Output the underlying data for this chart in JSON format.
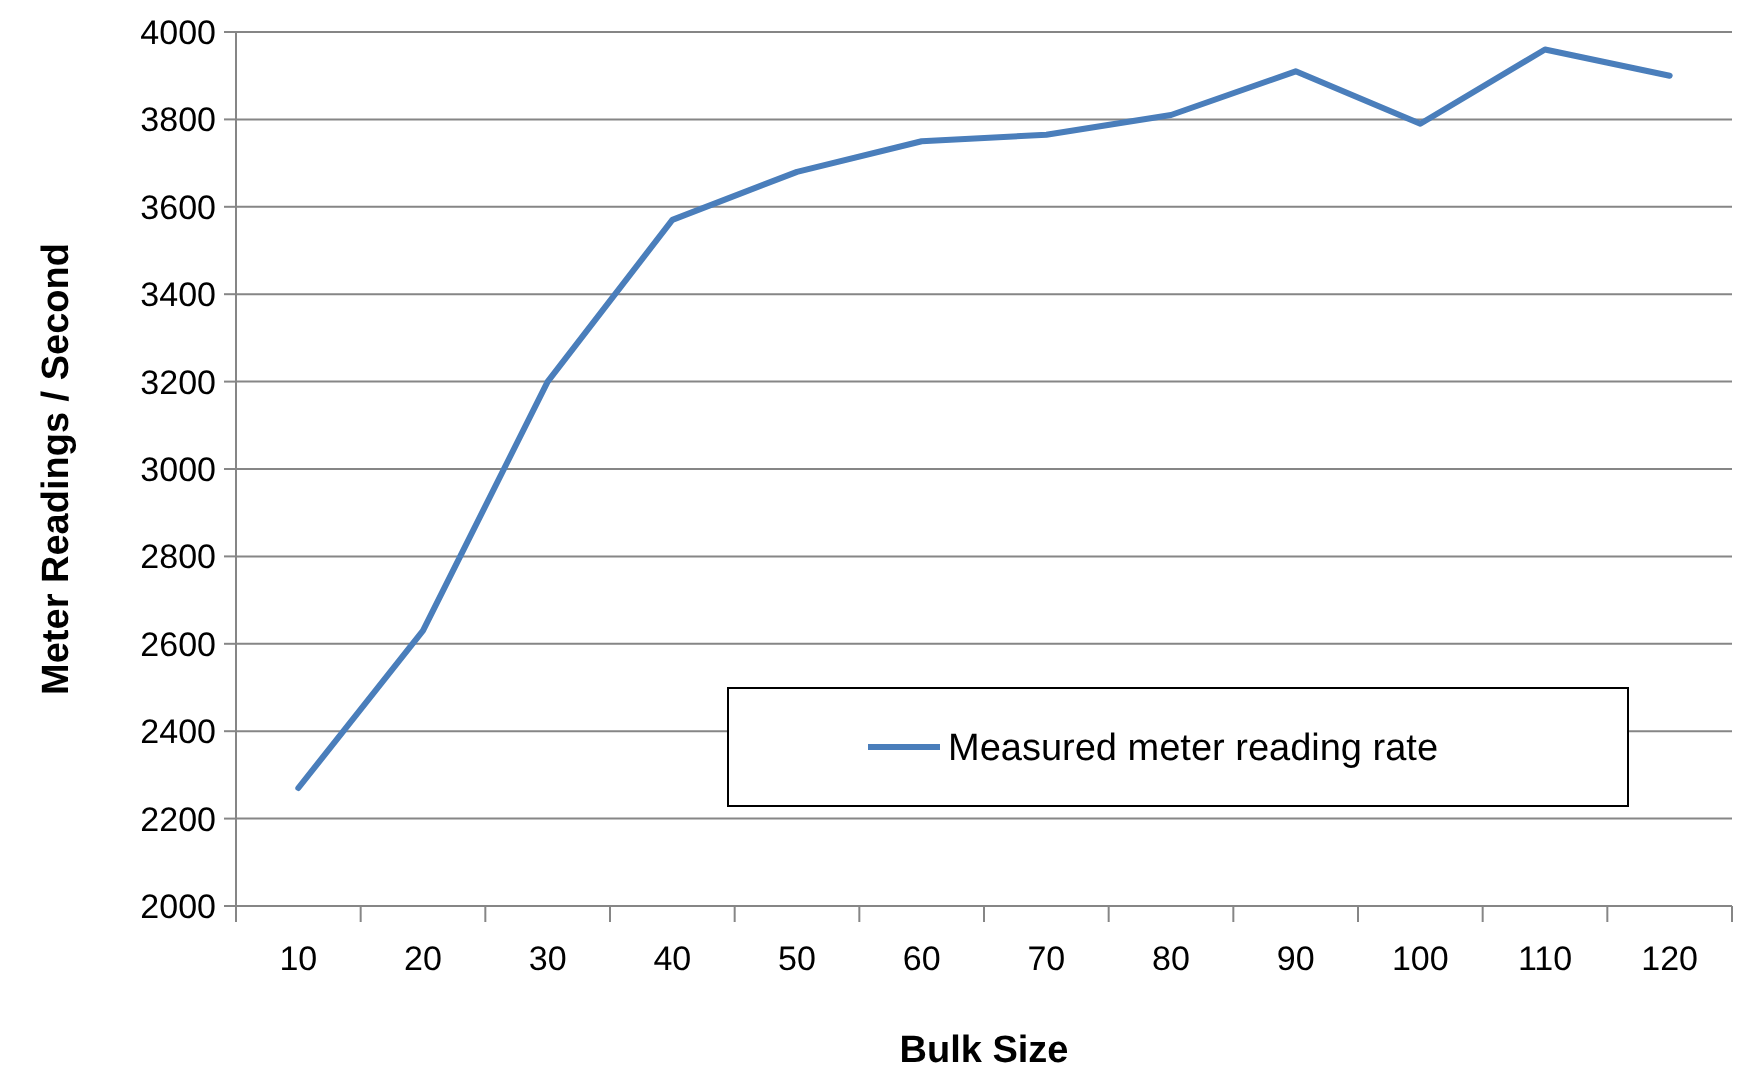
{
  "chart_data": {
    "type": "line",
    "xlabel": "Bulk Size",
    "ylabel": "Meter Readings / Second",
    "categories": [
      "10",
      "20",
      "30",
      "40",
      "50",
      "60",
      "70",
      "80",
      "90",
      "100",
      "110",
      "120"
    ],
    "series": [
      {
        "name": "Measured meter reading rate",
        "color": "#4a7ebb",
        "values": [
          2270,
          2630,
          3200,
          3570,
          3680,
          3750,
          3765,
          3810,
          3910,
          3790,
          3960,
          3900
        ]
      }
    ],
    "ylim": [
      2000,
      4000
    ],
    "yticks": [
      2000,
      2200,
      2400,
      2600,
      2800,
      3000,
      3200,
      3400,
      3600,
      3800,
      4000
    ],
    "grid": "y",
    "legend": "bottom right",
    "marker": "none",
    "line_style": "solid"
  }
}
